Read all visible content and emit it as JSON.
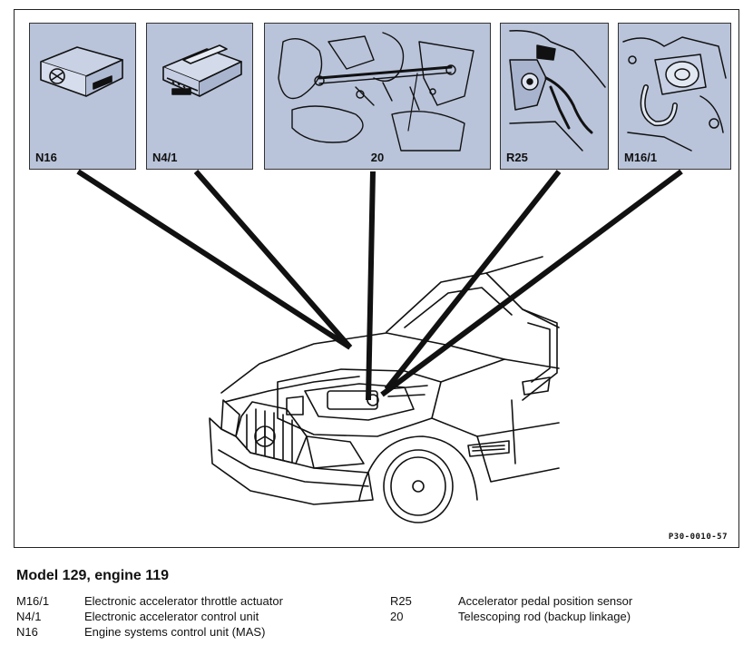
{
  "diagram": {
    "callouts": [
      {
        "id": "N16",
        "label": "N16"
      },
      {
        "id": "N4_1",
        "label": "N4/1"
      },
      {
        "id": "r20",
        "label": "20"
      },
      {
        "id": "R25",
        "label": "R25"
      },
      {
        "id": "M16_1",
        "label": "M16/1"
      }
    ],
    "doc_ref": "P30-0010-57",
    "panel_color": "#b9c4da"
  },
  "caption": {
    "heading": "Model 129, engine 119",
    "legend_left": [
      {
        "code": "M16/1",
        "desc": "Electronic accelerator throttle actuator"
      },
      {
        "code": "N4/1",
        "desc": "Electronic accelerator control unit"
      },
      {
        "code": "N16",
        "desc": "Engine systems control unit (MAS)"
      }
    ],
    "legend_right": [
      {
        "code": "R25",
        "desc": "Accelerator pedal position sensor"
      },
      {
        "code": "20",
        "desc": "Telescoping rod (backup linkage)"
      }
    ]
  }
}
